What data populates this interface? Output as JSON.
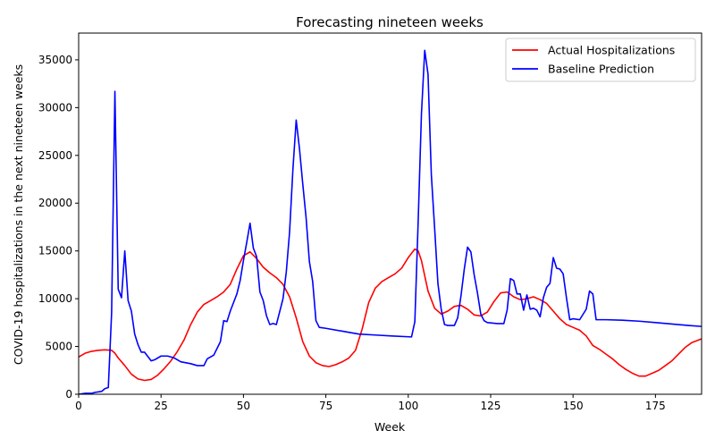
{
  "chart_data": {
    "type": "line",
    "title": "Forecasting nineteen weeks",
    "xlabel": "Week",
    "ylabel": "COVID-19 hospitalizations in the next nineteen weeks",
    "xlim": [
      0,
      189
    ],
    "ylim": [
      0,
      37800
    ],
    "xticks": [
      0,
      25,
      50,
      75,
      100,
      125,
      150,
      175
    ],
    "yticks": [
      0,
      5000,
      10000,
      15000,
      20000,
      25000,
      30000,
      35000
    ],
    "grid": false,
    "legend_position": "top-right",
    "series": [
      {
        "name": "Actual Hospitalizations",
        "color": "#ff0000",
        "points": [
          [
            0,
            3900
          ],
          [
            2,
            4300
          ],
          [
            4,
            4500
          ],
          [
            6,
            4600
          ],
          [
            8,
            4650
          ],
          [
            10,
            4600
          ],
          [
            11,
            4300
          ],
          [
            12,
            3800
          ],
          [
            14,
            3000
          ],
          [
            16,
            2100
          ],
          [
            18,
            1600
          ],
          [
            20,
            1450
          ],
          [
            22,
            1550
          ],
          [
            24,
            2000
          ],
          [
            26,
            2700
          ],
          [
            28,
            3500
          ],
          [
            30,
            4500
          ],
          [
            32,
            5700
          ],
          [
            34,
            7300
          ],
          [
            36,
            8600
          ],
          [
            38,
            9400
          ],
          [
            40,
            9800
          ],
          [
            42,
            10200
          ],
          [
            44,
            10700
          ],
          [
            46,
            11500
          ],
          [
            48,
            13100
          ],
          [
            50,
            14500
          ],
          [
            52,
            14900
          ],
          [
            54,
            14200
          ],
          [
            56,
            13300
          ],
          [
            58,
            12700
          ],
          [
            60,
            12200
          ],
          [
            62,
            11500
          ],
          [
            64,
            10200
          ],
          [
            66,
            8000
          ],
          [
            68,
            5500
          ],
          [
            70,
            4000
          ],
          [
            72,
            3300
          ],
          [
            74,
            3000
          ],
          [
            76,
            2900
          ],
          [
            78,
            3100
          ],
          [
            80,
            3400
          ],
          [
            82,
            3800
          ],
          [
            84,
            4600
          ],
          [
            86,
            6800
          ],
          [
            88,
            9600
          ],
          [
            90,
            11100
          ],
          [
            92,
            11800
          ],
          [
            94,
            12200
          ],
          [
            96,
            12600
          ],
          [
            98,
            13200
          ],
          [
            100,
            14300
          ],
          [
            102,
            15200
          ],
          [
            103,
            15000
          ],
          [
            104,
            14000
          ],
          [
            106,
            10800
          ],
          [
            108,
            9000
          ],
          [
            110,
            8400
          ],
          [
            112,
            8700
          ],
          [
            114,
            9200
          ],
          [
            116,
            9300
          ],
          [
            118,
            8900
          ],
          [
            120,
            8300
          ],
          [
            122,
            8200
          ],
          [
            124,
            8600
          ],
          [
            126,
            9700
          ],
          [
            128,
            10600
          ],
          [
            130,
            10700
          ],
          [
            132,
            10200
          ],
          [
            134,
            9900
          ],
          [
            136,
            10000
          ],
          [
            138,
            10200
          ],
          [
            140,
            9900
          ],
          [
            142,
            9500
          ],
          [
            144,
            8700
          ],
          [
            146,
            7900
          ],
          [
            148,
            7300
          ],
          [
            150,
            7000
          ],
          [
            152,
            6700
          ],
          [
            154,
            6100
          ],
          [
            156,
            5100
          ],
          [
            158,
            4700
          ],
          [
            160,
            4200
          ],
          [
            162,
            3700
          ],
          [
            164,
            3100
          ],
          [
            166,
            2600
          ],
          [
            168,
            2200
          ],
          [
            170,
            1900
          ],
          [
            172,
            1900
          ],
          [
            174,
            2200
          ],
          [
            176,
            2500
          ],
          [
            178,
            3000
          ],
          [
            180,
            3500
          ],
          [
            182,
            4200
          ],
          [
            184,
            4900
          ],
          [
            186,
            5400
          ],
          [
            189,
            5800
          ]
        ]
      },
      {
        "name": "Baseline Prediction",
        "color": "#0000ff",
        "points": [
          [
            0,
            0
          ],
          [
            2,
            100
          ],
          [
            4,
            100
          ],
          [
            5,
            200
          ],
          [
            7,
            300
          ],
          [
            8,
            600
          ],
          [
            9,
            700
          ],
          [
            10,
            8500
          ],
          [
            11,
            31700
          ],
          [
            12,
            11000
          ],
          [
            13,
            10100
          ],
          [
            14,
            15000
          ],
          [
            15,
            9800
          ],
          [
            16,
            8700
          ],
          [
            17,
            6300
          ],
          [
            18,
            5200
          ],
          [
            19,
            4400
          ],
          [
            20,
            4400
          ],
          [
            22,
            3500
          ],
          [
            23,
            3600
          ],
          [
            25,
            4000
          ],
          [
            27,
            4000
          ],
          [
            29,
            3800
          ],
          [
            31,
            3400
          ],
          [
            34,
            3200
          ],
          [
            36,
            3000
          ],
          [
            38,
            3000
          ],
          [
            39,
            3700
          ],
          [
            41,
            4100
          ],
          [
            43,
            5500
          ],
          [
            44,
            7700
          ],
          [
            45,
            7600
          ],
          [
            46,
            8700
          ],
          [
            48,
            10500
          ],
          [
            49,
            11900
          ],
          [
            50,
            14000
          ],
          [
            51,
            15900
          ],
          [
            52,
            17900
          ],
          [
            53,
            15300
          ],
          [
            54,
            14400
          ],
          [
            55,
            10700
          ],
          [
            56,
            9800
          ],
          [
            57,
            8200
          ],
          [
            58,
            7300
          ],
          [
            59,
            7400
          ],
          [
            60,
            7300
          ],
          [
            62,
            10000
          ],
          [
            63,
            12800
          ],
          [
            64,
            17000
          ],
          [
            65,
            23500
          ],
          [
            66,
            28700
          ],
          [
            67,
            25700
          ],
          [
            68,
            22000
          ],
          [
            69,
            18500
          ],
          [
            70,
            13900
          ],
          [
            71,
            11800
          ],
          [
            72,
            7700
          ],
          [
            73,
            7000
          ],
          [
            75,
            6900
          ],
          [
            80,
            6600
          ],
          [
            85,
            6300
          ],
          [
            90,
            6200
          ],
          [
            95,
            6100
          ],
          [
            101,
            6000
          ],
          [
            102,
            7600
          ],
          [
            103,
            18000
          ],
          [
            104,
            29300
          ],
          [
            105,
            36000
          ],
          [
            106,
            33500
          ],
          [
            107,
            23000
          ],
          [
            108,
            17400
          ],
          [
            109,
            11600
          ],
          [
            110,
            8900
          ],
          [
            111,
            7300
          ],
          [
            112,
            7200
          ],
          [
            114,
            7200
          ],
          [
            115,
            8000
          ],
          [
            116,
            10300
          ],
          [
            117,
            13100
          ],
          [
            118,
            15400
          ],
          [
            119,
            14900
          ],
          [
            120,
            12500
          ],
          [
            121,
            10600
          ],
          [
            122,
            8400
          ],
          [
            123,
            7700
          ],
          [
            124,
            7500
          ],
          [
            127,
            7400
          ],
          [
            129,
            7400
          ],
          [
            130,
            8800
          ],
          [
            131,
            12100
          ],
          [
            132,
            11900
          ],
          [
            133,
            10500
          ],
          [
            134,
            10500
          ],
          [
            135,
            8800
          ],
          [
            136,
            10400
          ],
          [
            137,
            8900
          ],
          [
            138,
            9000
          ],
          [
            139,
            8800
          ],
          [
            140,
            8100
          ],
          [
            141,
            10100
          ],
          [
            142,
            11200
          ],
          [
            143,
            11600
          ],
          [
            144,
            14300
          ],
          [
            145,
            13200
          ],
          [
            146,
            13100
          ],
          [
            147,
            12600
          ],
          [
            148,
            10100
          ],
          [
            149,
            7800
          ],
          [
            150,
            7900
          ],
          [
            152,
            7800
          ],
          [
            154,
            8900
          ],
          [
            155,
            10800
          ],
          [
            156,
            10500
          ],
          [
            157,
            7800
          ],
          [
            160,
            7800
          ],
          [
            165,
            7750
          ],
          [
            170,
            7650
          ],
          [
            175,
            7500
          ],
          [
            180,
            7350
          ],
          [
            185,
            7200
          ],
          [
            189,
            7100
          ]
        ]
      }
    ]
  }
}
